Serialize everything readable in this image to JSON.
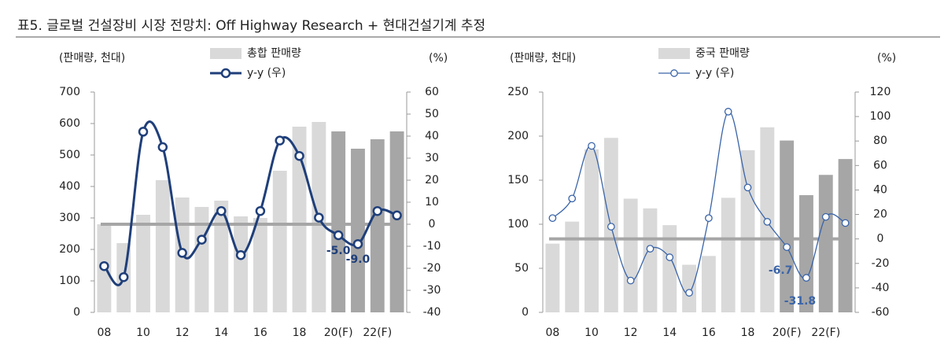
{
  "header": {
    "title": "표5. 글로벌 건설장비 시장 전망치: Off Highway Research + 현대건설기계 추정"
  },
  "chart_data": [
    {
      "type": "combo",
      "ylabel": "(판매량, 천대)",
      "y2label": "(%)",
      "categories": [
        "08",
        null,
        "10",
        null,
        "12",
        null,
        "14",
        null,
        "16",
        null,
        "18",
        null,
        "20(F)",
        null,
        "22(F)",
        null
      ],
      "ylim": [
        0,
        700
      ],
      "yticks": [
        0,
        100,
        200,
        300,
        400,
        500,
        600,
        700
      ],
      "y2lim": [
        -40,
        60
      ],
      "y2ticks": [
        -40,
        -30,
        -20,
        -10,
        0,
        10,
        20,
        30,
        40,
        50,
        60
      ],
      "series": [
        {
          "name": "총합 판매량",
          "type": "bar",
          "color": "#d9d9d9",
          "colors": [
            "#d9d9d9",
            "#d9d9d9",
            "#d9d9d9",
            "#d9d9d9",
            "#d9d9d9",
            "#d9d9d9",
            "#d9d9d9",
            "#d9d9d9",
            "#d9d9d9",
            "#d9d9d9",
            "#d9d9d9",
            "#d9d9d9",
            "#a6a6a6",
            "#a6a6a6",
            "#a6a6a6",
            "#a6a6a6"
          ],
          "values": [
            280,
            220,
            310,
            420,
            365,
            335,
            355,
            305,
            300,
            450,
            590,
            605,
            575,
            520,
            550,
            575
          ]
        },
        {
          "name": "y-y (우)",
          "type": "line",
          "axis": "y2",
          "color": "#1f3f7a",
          "values": [
            -19,
            -24,
            42,
            35,
            -13,
            -7,
            6,
            -14,
            6,
            38,
            31,
            3,
            -5,
            -9,
            6,
            4
          ],
          "value_labels": [
            null,
            null,
            null,
            null,
            null,
            null,
            null,
            null,
            null,
            null,
            null,
            null,
            "-5.0",
            "-9.0",
            null,
            null
          ]
        }
      ]
    },
    {
      "type": "combo",
      "ylabel": "(판매량, 천대)",
      "y2label": "(%)",
      "categories": [
        "08",
        null,
        "10",
        null,
        "12",
        null,
        "14",
        null,
        "16",
        null,
        "18",
        null,
        "20(F)",
        null,
        "22(F)",
        null
      ],
      "ylim": [
        0,
        250
      ],
      "yticks": [
        0,
        50,
        100,
        150,
        200,
        250
      ],
      "y2lim": [
        -60,
        120
      ],
      "y2ticks": [
        -60,
        -40,
        -20,
        0,
        20,
        40,
        60,
        80,
        100,
        120
      ],
      "series": [
        {
          "name": "중국 판매량",
          "type": "bar",
          "color": "#d9d9d9",
          "colors": [
            "#d9d9d9",
            "#d9d9d9",
            "#d9d9d9",
            "#d9d9d9",
            "#d9d9d9",
            "#d9d9d9",
            "#d9d9d9",
            "#d9d9d9",
            "#d9d9d9",
            "#d9d9d9",
            "#d9d9d9",
            "#d9d9d9",
            "#a6a6a6",
            "#a6a6a6",
            "#a6a6a6",
            "#a6a6a6"
          ],
          "values": [
            78,
            103,
            185,
            198,
            129,
            118,
            99,
            54,
            64,
            130,
            184,
            210,
            195,
            133,
            156,
            174
          ]
        },
        {
          "name": "y-y (우)",
          "type": "line",
          "axis": "y2",
          "color": "#3a64a8",
          "values": [
            17,
            33,
            76,
            10,
            -34,
            -8,
            -15,
            -44,
            17,
            104,
            42,
            14,
            -6.7,
            -31.8,
            18,
            13
          ],
          "value_labels": [
            null,
            null,
            null,
            null,
            null,
            null,
            null,
            null,
            null,
            null,
            null,
            null,
            "-6.7",
            "-31.8",
            null,
            null
          ]
        }
      ]
    }
  ]
}
